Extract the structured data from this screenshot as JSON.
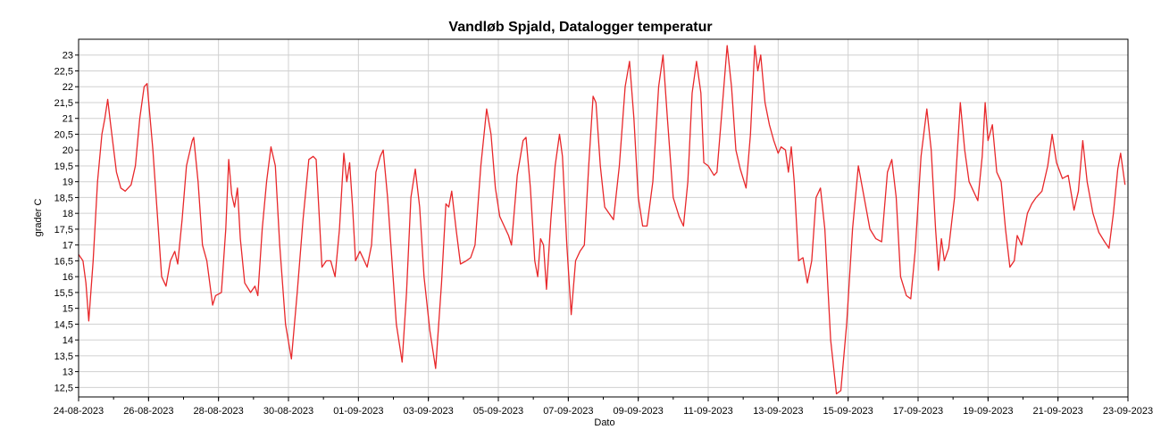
{
  "chart_data": {
    "type": "line",
    "title": "Vandløb Spjald, Datalogger temperatur",
    "xlabel": "Dato",
    "ylabel": "grader C",
    "xlim": [
      "2023-08-24",
      "2023-09-23"
    ],
    "ylim": [
      12.2,
      23.5
    ],
    "grid": true,
    "y_ticks": [
      "12,5",
      "13",
      "13,5",
      "14",
      "14,5",
      "15",
      "15,5",
      "16",
      "16,5",
      "17",
      "17,5",
      "18",
      "18,5",
      "19",
      "19,5",
      "20",
      "20,5",
      "21",
      "21,5",
      "22",
      "22,5",
      "23"
    ],
    "x_ticks": [
      "24-08-2023",
      "26-08-2023",
      "28-08-2023",
      "30-08-2023",
      "01-09-2023",
      "03-09-2023",
      "05-09-2023",
      "07-09-2023",
      "09-09-2023",
      "11-09-2023",
      "13-09-2023",
      "15-09-2023",
      "17-09-2023",
      "19-09-2023",
      "21-09-2023",
      "23-09-2023"
    ],
    "series": [
      {
        "color": "#e8282b",
        "points": [
          [
            "2023-08-24 00:00",
            16.7
          ],
          [
            "2023-08-24 03:00",
            16.5
          ],
          [
            "2023-08-24 05:00",
            15.8
          ],
          [
            "2023-08-24 07:00",
            14.6
          ],
          [
            "2023-08-24 10:00",
            16.5
          ],
          [
            "2023-08-24 13:00",
            19.0
          ],
          [
            "2023-08-24 16:00",
            20.5
          ],
          [
            "2023-08-24 18:00",
            21.0
          ],
          [
            "2023-08-24 20:00",
            21.6
          ],
          [
            "2023-08-24 22:00",
            20.8
          ],
          [
            "2023-08-25 02:00",
            19.3
          ],
          [
            "2023-08-25 05:00",
            18.8
          ],
          [
            "2023-08-25 08:00",
            18.7
          ],
          [
            "2023-08-25 12:00",
            18.9
          ],
          [
            "2023-08-25 15:00",
            19.5
          ],
          [
            "2023-08-25 18:00",
            21.0
          ],
          [
            "2023-08-25 21:00",
            22.0
          ],
          [
            "2023-08-25 23:00",
            22.1
          ],
          [
            "2023-08-26 03:00",
            20.0
          ],
          [
            "2023-08-26 06:00",
            18.0
          ],
          [
            "2023-08-26 09:00",
            16.0
          ],
          [
            "2023-08-26 12:00",
            15.7
          ],
          [
            "2023-08-26 15:00",
            16.5
          ],
          [
            "2023-08-26 18:00",
            16.8
          ],
          [
            "2023-08-26 20:00",
            16.4
          ],
          [
            "2023-08-26 23:00",
            17.8
          ],
          [
            "2023-08-27 02:00",
            19.5
          ],
          [
            "2023-08-27 06:00",
            20.3
          ],
          [
            "2023-08-27 07:00",
            20.4
          ],
          [
            "2023-08-27 10:00",
            19.0
          ],
          [
            "2023-08-27 13:00",
            17.0
          ],
          [
            "2023-08-27 16:00",
            16.5
          ],
          [
            "2023-08-27 20:00",
            15.1
          ],
          [
            "2023-08-27 22:00",
            15.4
          ],
          [
            "2023-08-28 02:00",
            15.5
          ],
          [
            "2023-08-28 05:00",
            17.5
          ],
          [
            "2023-08-28 07:00",
            19.7
          ],
          [
            "2023-08-28 09:00",
            18.6
          ],
          [
            "2023-08-28 11:00",
            18.2
          ],
          [
            "2023-08-28 13:00",
            18.8
          ],
          [
            "2023-08-28 15:00",
            17.2
          ],
          [
            "2023-08-28 18:00",
            15.8
          ],
          [
            "2023-08-28 22:00",
            15.5
          ],
          [
            "2023-08-29 01:00",
            15.7
          ],
          [
            "2023-08-29 03:00",
            15.4
          ],
          [
            "2023-08-29 06:00",
            17.5
          ],
          [
            "2023-08-29 09:00",
            19.0
          ],
          [
            "2023-08-29 12:00",
            20.1
          ],
          [
            "2023-08-29 15:00",
            19.5
          ],
          [
            "2023-08-29 18:00",
            17.0
          ],
          [
            "2023-08-29 22:00",
            14.5
          ],
          [
            "2023-08-30 02:00",
            13.4
          ],
          [
            "2023-08-30 06:00",
            15.5
          ],
          [
            "2023-08-30 10:00",
            17.8
          ],
          [
            "2023-08-30 14:00",
            19.7
          ],
          [
            "2023-08-30 17:00",
            19.8
          ],
          [
            "2023-08-30 19:00",
            19.7
          ],
          [
            "2023-08-30 21:00",
            18.0
          ],
          [
            "2023-08-30 23:00",
            16.3
          ],
          [
            "2023-08-31 02:00",
            16.5
          ],
          [
            "2023-08-31 05:00",
            16.5
          ],
          [
            "2023-08-31 08:00",
            16.0
          ],
          [
            "2023-08-31 11:00",
            17.5
          ],
          [
            "2023-08-31 14:00",
            19.9
          ],
          [
            "2023-08-31 16:00",
            19.0
          ],
          [
            "2023-08-31 18:00",
            19.6
          ],
          [
            "2023-08-31 20:00",
            18.2
          ],
          [
            "2023-08-31 22:00",
            16.5
          ],
          [
            "2023-09-01 01:00",
            16.8
          ],
          [
            "2023-09-01 04:00",
            16.5
          ],
          [
            "2023-09-01 06:00",
            16.3
          ],
          [
            "2023-09-01 09:00",
            17.0
          ],
          [
            "2023-09-01 12:00",
            19.3
          ],
          [
            "2023-09-01 15:00",
            19.8
          ],
          [
            "2023-09-01 17:00",
            20.0
          ],
          [
            "2023-09-01 20:00",
            18.5
          ],
          [
            "2023-09-01 23:00",
            16.5
          ],
          [
            "2023-09-02 02:00",
            14.5
          ],
          [
            "2023-09-02 06:00",
            13.3
          ],
          [
            "2023-09-02 09:00",
            15.5
          ],
          [
            "2023-09-02 12:00",
            18.5
          ],
          [
            "2023-09-02 15:00",
            19.4
          ],
          [
            "2023-09-02 18:00",
            18.2
          ],
          [
            "2023-09-02 21:00",
            16.0
          ],
          [
            "2023-09-03 01:00",
            14.3
          ],
          [
            "2023-09-03 05:00",
            13.1
          ],
          [
            "2023-09-03 09:00",
            15.8
          ],
          [
            "2023-09-03 12:00",
            18.3
          ],
          [
            "2023-09-03 14:00",
            18.2
          ],
          [
            "2023-09-03 16:00",
            18.7
          ],
          [
            "2023-09-03 19:00",
            17.5
          ],
          [
            "2023-09-03 22:00",
            16.4
          ],
          [
            "2023-09-04 02:00",
            16.5
          ],
          [
            "2023-09-04 05:00",
            16.6
          ],
          [
            "2023-09-04 08:00",
            17.0
          ],
          [
            "2023-09-04 12:00",
            19.5
          ],
          [
            "2023-09-04 16:00",
            21.3
          ],
          [
            "2023-09-04 19:00",
            20.5
          ],
          [
            "2023-09-04 22:00",
            18.8
          ],
          [
            "2023-09-05 01:00",
            17.9
          ],
          [
            "2023-09-05 04:00",
            17.6
          ],
          [
            "2023-09-05 07:00",
            17.3
          ],
          [
            "2023-09-05 09:00",
            17.0
          ],
          [
            "2023-09-05 13:00",
            19.2
          ],
          [
            "2023-09-05 17:00",
            20.3
          ],
          [
            "2023-09-05 19:00",
            20.4
          ],
          [
            "2023-09-05 22:00",
            18.8
          ],
          [
            "2023-09-06 01:00",
            16.5
          ],
          [
            "2023-09-06 03:00",
            16.0
          ],
          [
            "2023-09-06 05:00",
            17.2
          ],
          [
            "2023-09-06 07:00",
            17.0
          ],
          [
            "2023-09-06 09:00",
            15.6
          ],
          [
            "2023-09-06 12:00",
            17.8
          ],
          [
            "2023-09-06 15:00",
            19.5
          ],
          [
            "2023-09-06 18:00",
            20.5
          ],
          [
            "2023-09-06 20:00",
            19.8
          ],
          [
            "2023-09-06 23:00",
            17.0
          ],
          [
            "2023-09-07 02:00",
            14.8
          ],
          [
            "2023-09-07 05:00",
            16.5
          ],
          [
            "2023-09-07 08:00",
            16.8
          ],
          [
            "2023-09-07 11:00",
            17.0
          ],
          [
            "2023-09-07 14:00",
            19.5
          ],
          [
            "2023-09-07 17:00",
            21.7
          ],
          [
            "2023-09-07 19:00",
            21.5
          ],
          [
            "2023-09-07 22:00",
            19.5
          ],
          [
            "2023-09-08 01:00",
            18.2
          ],
          [
            "2023-09-08 04:00",
            18.0
          ],
          [
            "2023-09-08 07:00",
            17.8
          ],
          [
            "2023-09-08 11:00",
            19.5
          ],
          [
            "2023-09-08 15:00",
            22.0
          ],
          [
            "2023-09-08 18:00",
            22.8
          ],
          [
            "2023-09-08 21:00",
            21.0
          ],
          [
            "2023-09-09 00:00",
            18.5
          ],
          [
            "2023-09-09 03:00",
            17.6
          ],
          [
            "2023-09-09 06:00",
            17.6
          ],
          [
            "2023-09-09 10:00",
            19.0
          ],
          [
            "2023-09-09 14:00",
            22.0
          ],
          [
            "2023-09-09 17:00",
            23.0
          ],
          [
            "2023-09-09 20:00",
            21.0
          ],
          [
            "2023-09-10 00:00",
            18.5
          ],
          [
            "2023-09-10 04:00",
            17.9
          ],
          [
            "2023-09-10 07:00",
            17.6
          ],
          [
            "2023-09-10 10:00",
            19.0
          ],
          [
            "2023-09-10 13:00",
            21.8
          ],
          [
            "2023-09-10 16:00",
            22.8
          ],
          [
            "2023-09-10 19:00",
            21.8
          ],
          [
            "2023-09-10 21:00",
            19.6
          ],
          [
            "2023-09-11 00:00",
            19.5
          ],
          [
            "2023-09-11 04:00",
            19.2
          ],
          [
            "2023-09-11 06:00",
            19.3
          ],
          [
            "2023-09-11 09:00",
            21.0
          ],
          [
            "2023-09-11 13:00",
            23.3
          ],
          [
            "2023-09-11 16:00",
            22.0
          ],
          [
            "2023-09-11 19:00",
            20.0
          ],
          [
            "2023-09-11 22:00",
            19.4
          ],
          [
            "2023-09-12 02:00",
            18.8
          ],
          [
            "2023-09-12 05:00",
            20.5
          ],
          [
            "2023-09-12 08:00",
            23.3
          ],
          [
            "2023-09-12 10:00",
            22.5
          ],
          [
            "2023-09-12 12:00",
            23.0
          ],
          [
            "2023-09-12 15:00",
            21.5
          ],
          [
            "2023-09-12 18:00",
            20.8
          ],
          [
            "2023-09-12 21:00",
            20.3
          ],
          [
            "2023-09-13 00:00",
            19.9
          ],
          [
            "2023-09-13 02:00",
            20.1
          ],
          [
            "2023-09-13 05:00",
            20.0
          ],
          [
            "2023-09-13 07:00",
            19.3
          ],
          [
            "2023-09-13 09:00",
            20.1
          ],
          [
            "2023-09-13 11:00",
            19.0
          ],
          [
            "2023-09-13 14:00",
            16.5
          ],
          [
            "2023-09-13 17:00",
            16.6
          ],
          [
            "2023-09-13 20:00",
            15.8
          ],
          [
            "2023-09-13 23:00",
            16.5
          ],
          [
            "2023-09-14 02:00",
            18.5
          ],
          [
            "2023-09-14 05:00",
            18.8
          ],
          [
            "2023-09-14 08:00",
            17.5
          ],
          [
            "2023-09-14 12:00",
            14.0
          ],
          [
            "2023-09-14 16:00",
            12.3
          ],
          [
            "2023-09-14 19:00",
            12.4
          ],
          [
            "2023-09-14 23:00",
            14.5
          ],
          [
            "2023-09-15 03:00",
            17.5
          ],
          [
            "2023-09-15 07:00",
            19.5
          ],
          [
            "2023-09-15 11:00",
            18.5
          ],
          [
            "2023-09-15 15:00",
            17.5
          ],
          [
            "2023-09-15 19:00",
            17.2
          ],
          [
            "2023-09-15 23:00",
            17.1
          ],
          [
            "2023-09-16 03:00",
            19.3
          ],
          [
            "2023-09-16 06:00",
            19.7
          ],
          [
            "2023-09-16 09:00",
            18.5
          ],
          [
            "2023-09-16 12:00",
            16.0
          ],
          [
            "2023-09-16 16:00",
            15.4
          ],
          [
            "2023-09-16 19:00",
            15.3
          ],
          [
            "2023-09-16 22:00",
            16.8
          ],
          [
            "2023-09-17 02:00",
            19.8
          ],
          [
            "2023-09-17 06:00",
            21.3
          ],
          [
            "2023-09-17 09:00",
            20.0
          ],
          [
            "2023-09-17 12:00",
            17.5
          ],
          [
            "2023-09-17 14:00",
            16.2
          ],
          [
            "2023-09-17 16:00",
            17.2
          ],
          [
            "2023-09-17 18:00",
            16.5
          ],
          [
            "2023-09-17 21:00",
            16.9
          ],
          [
            "2023-09-18 01:00",
            18.5
          ],
          [
            "2023-09-18 05:00",
            21.5
          ],
          [
            "2023-09-18 08:00",
            20.0
          ],
          [
            "2023-09-18 11:00",
            19.0
          ],
          [
            "2023-09-18 14:00",
            18.7
          ],
          [
            "2023-09-18 17:00",
            18.4
          ],
          [
            "2023-09-18 20:00",
            19.8
          ],
          [
            "2023-09-18 22:00",
            21.5
          ],
          [
            "2023-09-19 00:00",
            20.3
          ],
          [
            "2023-09-19 03:00",
            20.8
          ],
          [
            "2023-09-19 06:00",
            19.3
          ],
          [
            "2023-09-19 09:00",
            19.0
          ],
          [
            "2023-09-19 12:00",
            17.5
          ],
          [
            "2023-09-19 15:00",
            16.3
          ],
          [
            "2023-09-19 18:00",
            16.5
          ],
          [
            "2023-09-19 20:00",
            17.3
          ],
          [
            "2023-09-19 23:00",
            17.0
          ],
          [
            "2023-09-20 03:00",
            18.0
          ],
          [
            "2023-09-20 06:00",
            18.3
          ],
          [
            "2023-09-20 09:00",
            18.5
          ],
          [
            "2023-09-20 13:00",
            18.7
          ],
          [
            "2023-09-20 17:00",
            19.5
          ],
          [
            "2023-09-20 20:00",
            20.5
          ],
          [
            "2023-09-20 23:00",
            19.6
          ],
          [
            "2023-09-21 03:00",
            19.1
          ],
          [
            "2023-09-21 07:00",
            19.2
          ],
          [
            "2023-09-21 11:00",
            18.1
          ],
          [
            "2023-09-21 14:00",
            18.7
          ],
          [
            "2023-09-21 17:00",
            20.3
          ],
          [
            "2023-09-21 20:00",
            19.0
          ],
          [
            "2023-09-22 00:00",
            18.0
          ],
          [
            "2023-09-22 04:00",
            17.4
          ],
          [
            "2023-09-22 08:00",
            17.1
          ],
          [
            "2023-09-22 11:00",
            16.9
          ],
          [
            "2023-09-22 14:00",
            18.0
          ],
          [
            "2023-09-22 17:00",
            19.4
          ],
          [
            "2023-09-22 19:00",
            19.9
          ],
          [
            "2023-09-22 22:00",
            18.9
          ]
        ]
      }
    ]
  }
}
